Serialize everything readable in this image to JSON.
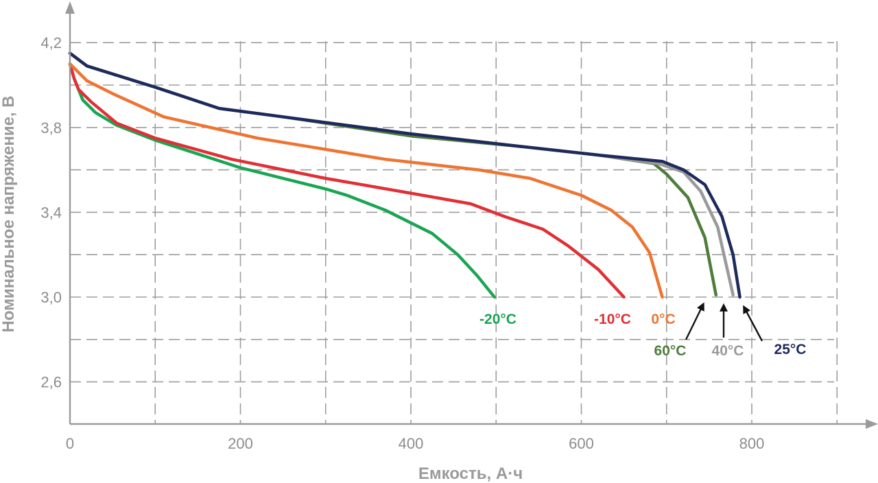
{
  "chart_data": {
    "type": "line",
    "xlabel": "Емкость, А·ч",
    "ylabel": "Номинальное напряжение, В",
    "xlim": [
      0,
      950
    ],
    "ylim": [
      2.45,
      4.3
    ],
    "x_ticks": [
      0,
      200,
      400,
      600,
      800
    ],
    "x_tick_labels": [
      "0",
      "200",
      "400",
      "600",
      "800"
    ],
    "y_ticks": [
      2.6,
      3.0,
      3.4,
      3.8,
      4.2
    ],
    "y_tick_labels": [
      "2,6",
      "3,0",
      "3,4",
      "3,8",
      "4,2"
    ],
    "grid": true,
    "series": [
      {
        "name": "-20°C",
        "color": "#1aa553",
        "points": [
          [
            0,
            4.1
          ],
          [
            5,
            4.03
          ],
          [
            15,
            3.93
          ],
          [
            30,
            3.87
          ],
          [
            55,
            3.81
          ],
          [
            100,
            3.74
          ],
          [
            200,
            3.61
          ],
          [
            300,
            3.51
          ],
          [
            325,
            3.48
          ],
          [
            370,
            3.41
          ],
          [
            425,
            3.3
          ],
          [
            455,
            3.2
          ],
          [
            478,
            3.1
          ],
          [
            498,
            3.0
          ]
        ]
      },
      {
        "name": "-10°C",
        "color": "#e03035",
        "points": [
          [
            0,
            4.1
          ],
          [
            5,
            4.03
          ],
          [
            10,
            3.98
          ],
          [
            25,
            3.92
          ],
          [
            55,
            3.82
          ],
          [
            100,
            3.75
          ],
          [
            190,
            3.65
          ],
          [
            300,
            3.56
          ],
          [
            400,
            3.49
          ],
          [
            470,
            3.44
          ],
          [
            510,
            3.38
          ],
          [
            555,
            3.32
          ],
          [
            585,
            3.24
          ],
          [
            620,
            3.13
          ],
          [
            650,
            3.0
          ]
        ]
      },
      {
        "name": "0°C",
        "color": "#ee7432",
        "points": [
          [
            0,
            4.1
          ],
          [
            20,
            4.02
          ],
          [
            50,
            3.96
          ],
          [
            110,
            3.85
          ],
          [
            220,
            3.75
          ],
          [
            370,
            3.65
          ],
          [
            480,
            3.6
          ],
          [
            540,
            3.56
          ],
          [
            600,
            3.48
          ],
          [
            635,
            3.41
          ],
          [
            660,
            3.33
          ],
          [
            680,
            3.21
          ],
          [
            695,
            3.0
          ]
        ]
      },
      {
        "name": "60°C",
        "color": "#4e7d3b",
        "points": [
          [
            0,
            4.15
          ],
          [
            20,
            4.09
          ],
          [
            100,
            3.99
          ],
          [
            175,
            3.89
          ],
          [
            250,
            3.85
          ],
          [
            400,
            3.76
          ],
          [
            530,
            3.71
          ],
          [
            620,
            3.67
          ],
          [
            685,
            3.63
          ],
          [
            700,
            3.58
          ],
          [
            725,
            3.47
          ],
          [
            745,
            3.28
          ],
          [
            758,
            3.01
          ]
        ]
      },
      {
        "name": "40°C",
        "color": "#9a9a9a",
        "points": [
          [
            0,
            4.15
          ],
          [
            20,
            4.09
          ],
          [
            100,
            3.99
          ],
          [
            175,
            3.89
          ],
          [
            250,
            3.85
          ],
          [
            400,
            3.77
          ],
          [
            530,
            3.71
          ],
          [
            620,
            3.67
          ],
          [
            690,
            3.63
          ],
          [
            720,
            3.59
          ],
          [
            740,
            3.5
          ],
          [
            760,
            3.33
          ],
          [
            778,
            3.01
          ]
        ]
      },
      {
        "name": "25°C",
        "color": "#1e2a5c",
        "points": [
          [
            0,
            4.15
          ],
          [
            20,
            4.09
          ],
          [
            100,
            3.99
          ],
          [
            175,
            3.89
          ],
          [
            250,
            3.85
          ],
          [
            400,
            3.77
          ],
          [
            530,
            3.71
          ],
          [
            620,
            3.67
          ],
          [
            695,
            3.64
          ],
          [
            720,
            3.6
          ],
          [
            745,
            3.53
          ],
          [
            765,
            3.38
          ],
          [
            778,
            3.2
          ],
          [
            786,
            3.0
          ]
        ]
      }
    ]
  },
  "annotations": [
    {
      "text": "-20°C",
      "color": "#1aa553",
      "arrow": false
    },
    {
      "text": "-10°C",
      "color": "#e03035",
      "arrow": false
    },
    {
      "text": "0°C",
      "color": "#ee7432",
      "arrow": false
    },
    {
      "text": "60°C",
      "color": "#4e7d3b",
      "arrow": true
    },
    {
      "text": "40°C",
      "color": "#9a9a9a",
      "arrow": true
    },
    {
      "text": "25°C",
      "color": "#1e2a5c",
      "arrow": true
    }
  ]
}
